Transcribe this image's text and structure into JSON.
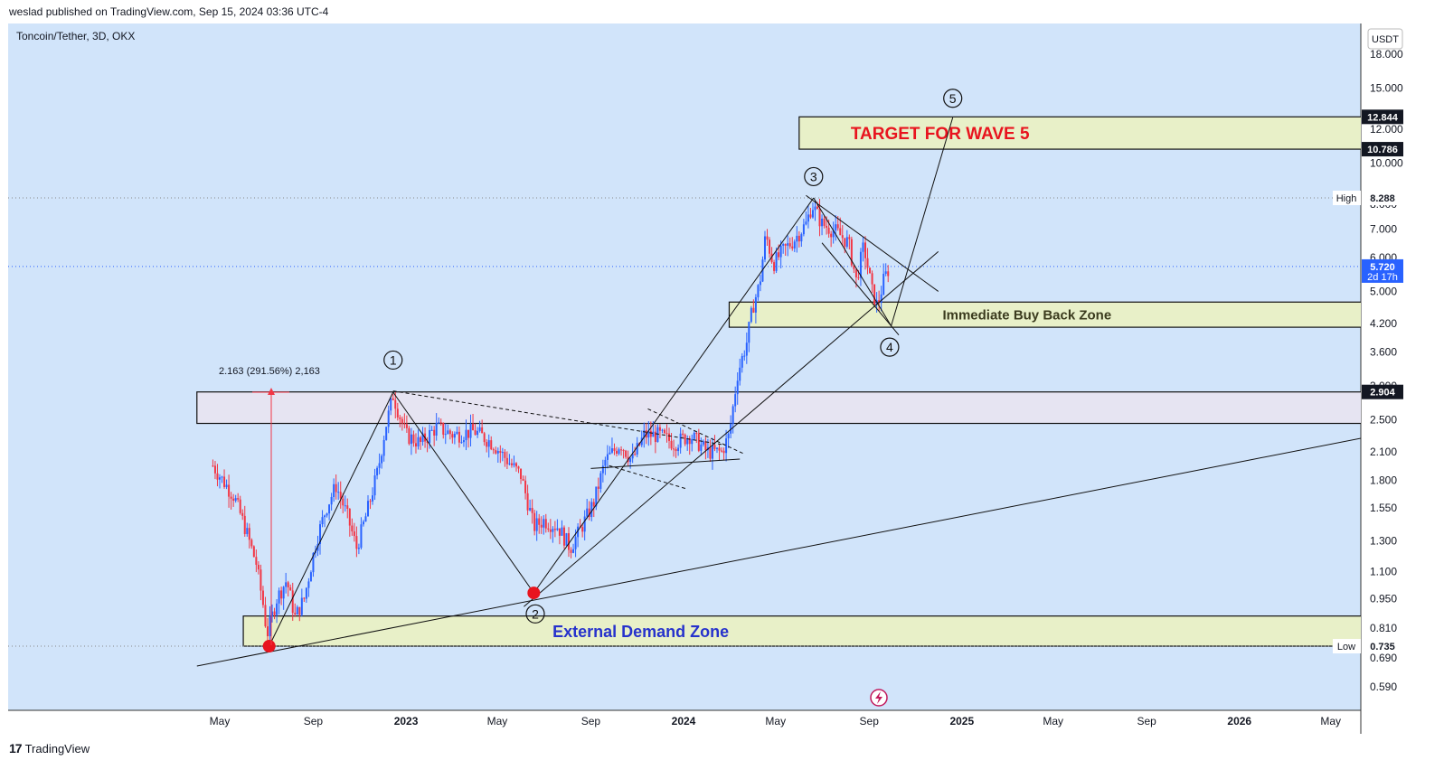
{
  "header": {
    "publish_line": "weslad published on TradingView.com, Sep 15, 2024 03:36 UTC-4"
  },
  "footer": {
    "brand_mark": "17",
    "brand_name": "TradingView"
  },
  "chart_data": {
    "type": "candlestick",
    "symbol_line": "Toncoin/Tether, 3D, OKX",
    "currency": "USDT",
    "y_scale": "log",
    "ylim": [
      0.52,
      20
    ],
    "y_ticks": [
      "18.000",
      "15.000",
      "12.000",
      "10.000",
      "8.000",
      "7.000",
      "6.000",
      "5.000",
      "4.200",
      "3.600",
      "3.000",
      "2.500",
      "2.100",
      "1.800",
      "1.550",
      "1.300",
      "1.100",
      "0.950",
      "0.810",
      "0.690",
      "0.590"
    ],
    "x_ticks": [
      "May",
      "Sep",
      "2023",
      "May",
      "Sep",
      "2024",
      "May",
      "Sep",
      "2025",
      "May",
      "Sep",
      "2026",
      "May"
    ],
    "price_badges": [
      {
        "label": "12.844",
        "value": 12.844,
        "style": "dark"
      },
      {
        "label": "10.786",
        "value": 10.786,
        "style": "dark"
      },
      {
        "label": "8.288",
        "value": 8.288,
        "style": "light",
        "tag": "High"
      },
      {
        "label": "5.720",
        "value": 5.72,
        "style": "blue",
        "sub": "2d 17h"
      },
      {
        "label": "2.904",
        "value": 2.904,
        "style": "dark"
      },
      {
        "label": "0.735",
        "value": 0.735,
        "style": "light",
        "tag": "Low"
      }
    ],
    "zones": [
      {
        "label": "TARGET FOR WAVE 5",
        "low": 10.786,
        "high": 12.844,
        "color": "#e8f0c8",
        "text_color": "#e8141e",
        "start": "2024-06-01",
        "end": "2026-07-01"
      },
      {
        "label": "Immediate Buy Back Zone",
        "low": 4.12,
        "high": 4.72,
        "color": "#e8f0c8",
        "text_color": "#3b3b1e",
        "start": "2024-03-01",
        "end": "2026-07-01"
      },
      {
        "label": "",
        "low": 2.45,
        "high": 2.904,
        "color": "#e6e4f2",
        "text_color": "#000",
        "start": "2022-04-01",
        "end": "2026-07-01"
      },
      {
        "label": "External Demand Zone",
        "low": 0.735,
        "high": 0.865,
        "color": "#e8f0c8",
        "text_color": "#2632cc",
        "start": "2022-06-01",
        "end": "2026-07-01"
      }
    ],
    "wave_labels": [
      "1",
      "2",
      "3",
      "4",
      "5"
    ],
    "measure_label": "2.163 (291.56%) 2,163",
    "series": [
      {
        "name": "price",
        "points": [
          [
            "2022-04-22",
            1.95
          ],
          [
            "2022-05-05",
            1.8
          ],
          [
            "2022-05-20",
            1.65
          ],
          [
            "2022-06-03",
            1.4
          ],
          [
            "2022-06-18",
            1.15
          ],
          [
            "2022-06-28",
            0.9
          ],
          [
            "2022-07-02",
            0.78
          ],
          [
            "2022-07-15",
            0.95
          ],
          [
            "2022-07-28",
            1.05
          ],
          [
            "2022-08-08",
            0.86
          ],
          [
            "2022-08-20",
            0.95
          ],
          [
            "2022-09-05",
            1.3
          ],
          [
            "2022-09-18",
            1.55
          ],
          [
            "2022-10-01",
            1.75
          ],
          [
            "2022-10-15",
            1.5
          ],
          [
            "2022-10-28",
            1.25
          ],
          [
            "2022-11-10",
            1.5
          ],
          [
            "2022-11-25",
            1.9
          ],
          [
            "2022-12-05",
            2.4
          ],
          [
            "2022-12-15",
            2.85
          ],
          [
            "2023-01-01",
            2.3
          ],
          [
            "2023-01-20",
            2.2
          ],
          [
            "2023-02-10",
            2.4
          ],
          [
            "2023-03-05",
            2.3
          ],
          [
            "2023-04-01",
            2.35
          ],
          [
            "2023-04-25",
            2.2
          ],
          [
            "2023-05-15",
            2.0
          ],
          [
            "2023-06-01",
            1.85
          ],
          [
            "2023-06-12",
            1.55
          ],
          [
            "2023-06-18",
            1.4
          ],
          [
            "2023-07-01",
            1.45
          ],
          [
            "2023-07-20",
            1.4
          ],
          [
            "2023-08-05",
            1.25
          ],
          [
            "2023-08-20",
            1.4
          ],
          [
            "2023-09-05",
            1.6
          ],
          [
            "2023-09-20",
            2.0
          ],
          [
            "2023-10-10",
            2.2
          ],
          [
            "2023-10-25",
            2.0
          ],
          [
            "2023-11-10",
            2.3
          ],
          [
            "2023-11-30",
            2.3
          ],
          [
            "2023-12-20",
            2.2
          ],
          [
            "2024-01-10",
            2.3
          ],
          [
            "2024-02-01",
            2.1
          ],
          [
            "2024-02-20",
            2.1
          ],
          [
            "2024-03-01",
            2.3
          ],
          [
            "2024-03-12",
            3.2
          ],
          [
            "2024-03-24",
            3.8
          ],
          [
            "2024-04-01",
            4.6
          ],
          [
            "2024-04-10",
            5.2
          ],
          [
            "2024-04-18",
            6.8
          ],
          [
            "2024-04-28",
            5.8
          ],
          [
            "2024-05-10",
            6.2
          ],
          [
            "2024-05-25",
            6.6
          ],
          [
            "2024-06-10",
            7.2
          ],
          [
            "2024-06-18",
            8.0
          ],
          [
            "2024-07-01",
            7.2
          ],
          [
            "2024-07-20",
            6.9
          ],
          [
            "2024-08-05",
            6.5
          ],
          [
            "2024-08-15",
            5.3
          ],
          [
            "2024-08-25",
            6.4
          ],
          [
            "2024-09-05",
            5.0
          ],
          [
            "2024-09-12",
            4.6
          ],
          [
            "2024-09-20",
            5.3
          ],
          [
            "2024-09-28",
            5.72
          ]
        ]
      }
    ]
  }
}
